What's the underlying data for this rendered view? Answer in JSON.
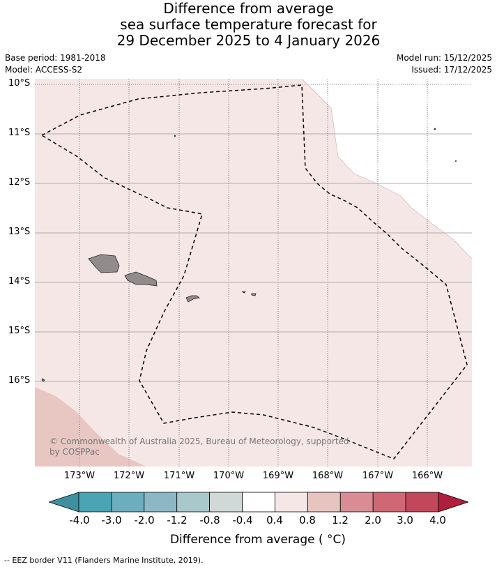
{
  "title": {
    "line1": "Difference from average",
    "line2": "sea surface temperature forecast for",
    "line3": "29 December 2025 to 4 January 2026"
  },
  "meta": {
    "base_period": "Base period: 1981-2018",
    "model": "Model: ACCESS-S2",
    "model_run": "Model run: 15/12/2025",
    "issued": "Issued: 17/12/2025"
  },
  "map": {
    "lat_labels": [
      "10°S",
      "11°S",
      "12°S",
      "13°S",
      "14°S",
      "15°S",
      "16°S"
    ],
    "lon_labels": [
      "173°W",
      "172°W",
      "171°W",
      "170°W",
      "169°W",
      "168°W",
      "167°W",
      "166°W"
    ],
    "copyright": "© Commonwealth of Australia 2025, Bureau of Meteorology, supported by COSPPac",
    "colors": {
      "ocean_anomaly": "#f4e7e5",
      "warm_anomaly": "#e8c7c2",
      "land": "#918c8b",
      "eez": "#000000"
    }
  },
  "colorbar": {
    "labels": [
      "-4.0",
      "-3.0",
      "-2.0",
      "-1.2",
      "-0.8",
      "-0.4",
      "0.4",
      "0.8",
      "1.2",
      "2.0",
      "3.0",
      "4.0"
    ],
    "colors": [
      "#3f8f9c",
      "#4aa4b4",
      "#6caebe",
      "#8bb8c4",
      "#a8c8cc",
      "#d1d8d8",
      "#ffffff",
      "#f4e7e6",
      "#e8c4c0",
      "#d98c94",
      "#cf6875",
      "#c1485a",
      "#b01e3d"
    ],
    "title": "Difference from average ( °C)"
  },
  "legend": {
    "eez_label": "-- EEZ border V11 (Flanders Marine Institute, 2019)."
  }
}
